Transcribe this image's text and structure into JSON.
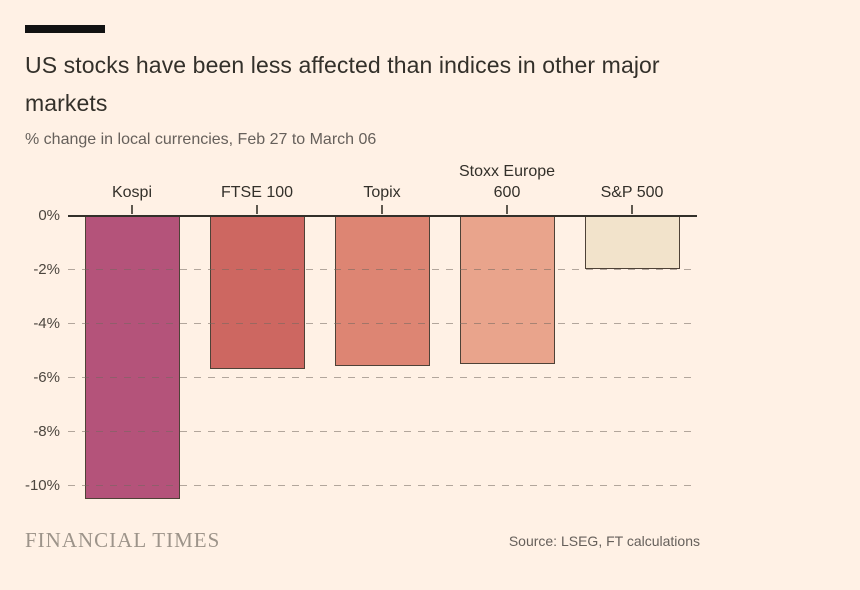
{
  "header": {
    "title": "US stocks have been less affected than indices in other major markets",
    "subtitle": "% change in local currencies, Feb 27 to March 06"
  },
  "chart_data": {
    "type": "bar",
    "title": "US stocks have been less affected than indices in other major markets",
    "subtitle": "% change in local currencies, Feb 27 to March 06",
    "xlabel": "",
    "ylabel": "% change in local currencies",
    "categories": [
      "Kospi",
      "FTSE 100",
      "Topix",
      "Stoxx Europe 600",
      "S&P 500"
    ],
    "values": [
      -10.5,
      -5.7,
      -5.6,
      -5.5,
      -2.0
    ],
    "bar_colors": [
      "#b4537a",
      "#cd6761",
      "#dd8573",
      "#e9a48c",
      "#f2e3cb"
    ],
    "y_ticks": [
      0,
      -2,
      -4,
      -6,
      -8,
      -10
    ],
    "y_tick_labels": [
      "0%",
      "-2%",
      "-4%",
      "-6%",
      "-8%",
      "-10%"
    ],
    "ylim": [
      -10.8,
      0
    ],
    "grid": "horizontal-dashed",
    "legend": "none"
  },
  "footer": {
    "brand": "FINANCIAL TIMES",
    "source": "Source: LSEG, FT calculations"
  },
  "colors": {
    "background": "#fff1e5",
    "axis": "#33302a"
  }
}
